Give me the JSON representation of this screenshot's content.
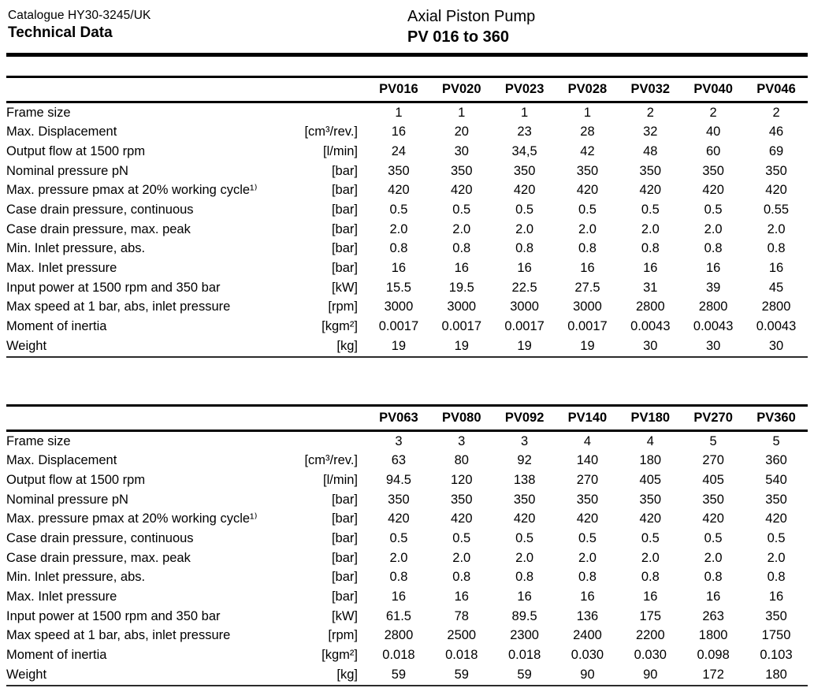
{
  "header": {
    "catalogue": "Catalogue HY30-3245/UK",
    "doc_title": "Technical Data",
    "product_line1": "Axial Piston Pump",
    "product_line2": "PV 016 to 360"
  },
  "chart_data": [
    {
      "type": "table",
      "title": "Axial Piston Pump PV 016 to 360 — Technical Data (frames 1–2)",
      "columns": [
        "PV016",
        "PV020",
        "PV023",
        "PV028",
        "PV032",
        "PV040",
        "PV046"
      ],
      "rows": [
        {
          "label": "Frame size",
          "unit": "",
          "values": [
            "1",
            "1",
            "1",
            "1",
            "2",
            "2",
            "2"
          ]
        },
        {
          "label": "Max. Displacement",
          "unit": "[cm³/rev.]",
          "values": [
            "16",
            "20",
            "23",
            "28",
            "32",
            "40",
            "46"
          ]
        },
        {
          "label": "Output flow at 1500 rpm",
          "unit": "[l/min]",
          "values": [
            "24",
            "30",
            "34,5",
            "42",
            "48",
            "60",
            "69"
          ]
        },
        {
          "label": "Nominal pressure pN",
          "unit": "[bar]",
          "values": [
            "350",
            "350",
            "350",
            "350",
            "350",
            "350",
            "350"
          ]
        },
        {
          "label": "Max. pressure pmax at 20% working cycle¹⁾",
          "unit": "[bar]",
          "values": [
            "420",
            "420",
            "420",
            "420",
            "420",
            "420",
            "420"
          ]
        },
        {
          "label": "Case drain pressure, continuous",
          "unit": "[bar]",
          "values": [
            "0.5",
            "0.5",
            "0.5",
            "0.5",
            "0.5",
            "0.5",
            "0.55"
          ]
        },
        {
          "label": "Case drain pressure, max. peak",
          "unit": "[bar]",
          "values": [
            "2.0",
            "2.0",
            "2.0",
            "2.0",
            "2.0",
            "2.0",
            "2.0"
          ]
        },
        {
          "label": "Min. Inlet pressure, abs.",
          "unit": "[bar]",
          "values": [
            "0.8",
            "0.8",
            "0.8",
            "0.8",
            "0.8",
            "0.8",
            "0.8"
          ]
        },
        {
          "label": "Max. Inlet pressure",
          "unit": "[bar]",
          "values": [
            "16",
            "16",
            "16",
            "16",
            "16",
            "16",
            "16"
          ]
        },
        {
          "label": "Input power at 1500 rpm and 350 bar",
          "unit": "[kW]",
          "values": [
            "15.5",
            "19.5",
            "22.5",
            "27.5",
            "31",
            "39",
            "45"
          ]
        },
        {
          "label": "Max speed at 1 bar, abs, inlet pressure",
          "unit": "[rpm]",
          "values": [
            "3000",
            "3000",
            "3000",
            "3000",
            "2800",
            "2800",
            "2800"
          ]
        },
        {
          "label": "Moment of inertia",
          "unit": "[kgm²]",
          "values": [
            "0.0017",
            "0.0017",
            "0.0017",
            "0.0017",
            "0.0043",
            "0.0043",
            "0.0043"
          ]
        },
        {
          "label": "Weight",
          "unit": "[kg]",
          "values": [
            "19",
            "19",
            "19",
            "19",
            "30",
            "30",
            "30"
          ]
        }
      ]
    },
    {
      "type": "table",
      "title": "Axial Piston Pump PV 016 to 360 — Technical Data (frames 3–5)",
      "columns": [
        "PV063",
        "PV080",
        "PV092",
        "PV140",
        "PV180",
        "PV270",
        "PV360"
      ],
      "rows": [
        {
          "label": "Frame size",
          "unit": "",
          "values": [
            "3",
            "3",
            "3",
            "4",
            "4",
            "5",
            "5"
          ]
        },
        {
          "label": "Max. Displacement",
          "unit": "[cm³/rev.]",
          "values": [
            "63",
            "80",
            "92",
            "140",
            "180",
            "270",
            "360"
          ]
        },
        {
          "label": "Output flow at 1500 rpm",
          "unit": "[l/min]",
          "values": [
            "94.5",
            "120",
            "138",
            "270",
            "405",
            "405",
            "540"
          ]
        },
        {
          "label": "Nominal pressure pN",
          "unit": "[bar]",
          "values": [
            "350",
            "350",
            "350",
            "350",
            "350",
            "350",
            "350"
          ]
        },
        {
          "label": "Max. pressure pmax at 20% working cycle¹⁾",
          "unit": "[bar]",
          "values": [
            "420",
            "420",
            "420",
            "420",
            "420",
            "420",
            "420"
          ]
        },
        {
          "label": "Case drain pressure, continuous",
          "unit": "[bar]",
          "values": [
            "0.5",
            "0.5",
            "0.5",
            "0.5",
            "0.5",
            "0.5",
            "0.5"
          ]
        },
        {
          "label": "Case drain pressure, max. peak",
          "unit": "[bar]",
          "values": [
            "2.0",
            "2.0",
            "2.0",
            "2.0",
            "2.0",
            "2.0",
            "2.0"
          ]
        },
        {
          "label": "Min. Inlet pressure, abs.",
          "unit": "[bar]",
          "values": [
            "0.8",
            "0.8",
            "0.8",
            "0.8",
            "0.8",
            "0.8",
            "0.8"
          ]
        },
        {
          "label": "Max. Inlet pressure",
          "unit": "[bar]",
          "values": [
            "16",
            "16",
            "16",
            "16",
            "16",
            "16",
            "16"
          ]
        },
        {
          "label": "Input power at 1500 rpm and 350 bar",
          "unit": "[kW]",
          "values": [
            "61.5",
            "78",
            "89.5",
            "136",
            "175",
            "263",
            "350"
          ]
        },
        {
          "label": "Max speed at 1 bar, abs, inlet pressure",
          "unit": "[rpm]",
          "values": [
            "2800",
            "2500",
            "2300",
            "2400",
            "2200",
            "1800",
            "1750"
          ]
        },
        {
          "label": "Moment of inertia",
          "unit": "[kgm²]",
          "values": [
            "0.018",
            "0.018",
            "0.018",
            "0.030",
            "0.030",
            "0.098",
            "0.103"
          ]
        },
        {
          "label": "Weight",
          "unit": "[kg]",
          "values": [
            "59",
            "59",
            "59",
            "90",
            "90",
            "172",
            "180"
          ]
        }
      ]
    }
  ]
}
